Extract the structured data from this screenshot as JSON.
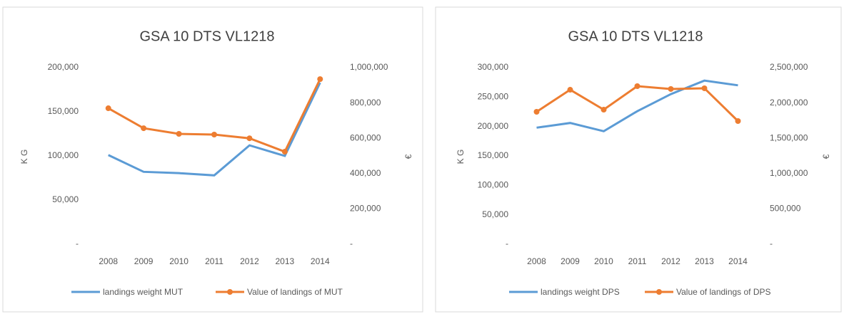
{
  "chart_data": [
    {
      "type": "line",
      "title": "GSA 10 DTS VL1218",
      "y_label": "K G",
      "y2_label": "€",
      "categories": [
        "2008",
        "2009",
        "2010",
        "2011",
        "2012",
        "2013",
        "2014"
      ],
      "series": [
        {
          "name": "landings weight MUT",
          "color": "#5b9bd5",
          "values": [
            101000,
            82000,
            80500,
            78000,
            112000,
            100000,
            183000
          ]
        },
        {
          "name": "Value of landings of MUT",
          "color": "#ed7d31",
          "axis": "y2",
          "values": [
            770000,
            657000,
            625000,
            621000,
            600000,
            524000,
            935000
          ]
        }
      ],
      "ylim": [
        0,
        200000
      ],
      "yticks": [
        {
          "value": 0,
          "label": "-"
        },
        {
          "value": 50000,
          "label": "50,000"
        },
        {
          "value": 100000,
          "label": "100,000"
        },
        {
          "value": 150000,
          "label": "150,000"
        },
        {
          "value": 200000,
          "label": "200,000"
        }
      ],
      "y2lim": [
        0,
        1000000
      ],
      "y2ticks": [
        {
          "value": 0,
          "label": "-"
        },
        {
          "value": 200000,
          "label": "200,000"
        },
        {
          "value": 400000,
          "label": "400,000"
        },
        {
          "value": 600000,
          "label": "600,000"
        },
        {
          "value": 800000,
          "label": "800,000"
        },
        {
          "value": 1000000,
          "label": "1,000,000"
        }
      ],
      "legend": "bottom"
    },
    {
      "type": "line",
      "title": "GSA 10 DTS VL1218",
      "y_label": "K G",
      "y2_label": "€",
      "categories": [
        "2008",
        "2009",
        "2010",
        "2011",
        "2012",
        "2013",
        "2014"
      ],
      "series": [
        {
          "name": "landings weight DPS",
          "color": "#5b9bd5",
          "values": [
            198000,
            206000,
            192000,
            226000,
            255000,
            278000,
            270000
          ]
        },
        {
          "name": "Value of landings of DPS",
          "color": "#ed7d31",
          "axis": "y2",
          "values": [
            1875000,
            2187000,
            1905000,
            2238000,
            2198000,
            2208000,
            1744000
          ]
        }
      ],
      "ylim": [
        0,
        300000
      ],
      "yticks": [
        {
          "value": 0,
          "label": "-"
        },
        {
          "value": 50000,
          "label": "50,000"
        },
        {
          "value": 100000,
          "label": "100,000"
        },
        {
          "value": 150000,
          "label": "150,000"
        },
        {
          "value": 200000,
          "label": "200,000"
        },
        {
          "value": 250000,
          "label": "250,000"
        },
        {
          "value": 300000,
          "label": "300,000"
        }
      ],
      "y2lim": [
        0,
        2500000
      ],
      "y2ticks": [
        {
          "value": 0,
          "label": "-"
        },
        {
          "value": 500000,
          "label": "500,000"
        },
        {
          "value": 1000000,
          "label": "1,000,000"
        },
        {
          "value": 1500000,
          "label": "1,500,000"
        },
        {
          "value": 2000000,
          "label": "2,000,000"
        },
        {
          "value": 2500000,
          "label": "2,500,000"
        }
      ],
      "legend": "bottom"
    }
  ]
}
